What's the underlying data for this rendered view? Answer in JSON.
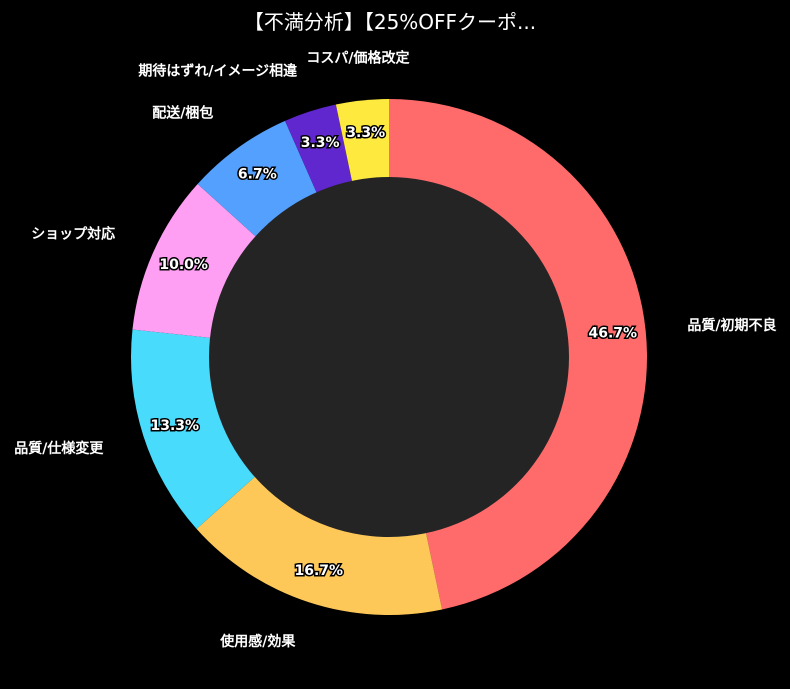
{
  "chart_data": {
    "type": "pie",
    "title": "【不満分析】【25%OFFクーポ...",
    "categories": [
      "品質/初期不良",
      "使用感/効果",
      "品質/仕様変更",
      "ショップ対応",
      "配送/梱包",
      "期待はずれ/イメージ相違",
      "コスパ/価格改定"
    ],
    "values": [
      46.7,
      16.7,
      13.3,
      10.0,
      6.7,
      3.3,
      3.3
    ],
    "value_labels": [
      "46.7%",
      "16.7%",
      "13.3%",
      "10.0%",
      "6.7%",
      "3.3%",
      "3.3%"
    ],
    "colors": [
      "#ff6b6b",
      "#fec859",
      "#48dbfb",
      "#ff9ff3",
      "#54a0ff",
      "#5f27cd",
      "#feea3f"
    ],
    "hole_color": "#242424",
    "background": "#000000",
    "start": "12 o'clock",
    "direction": "clockwise",
    "donut": true
  }
}
